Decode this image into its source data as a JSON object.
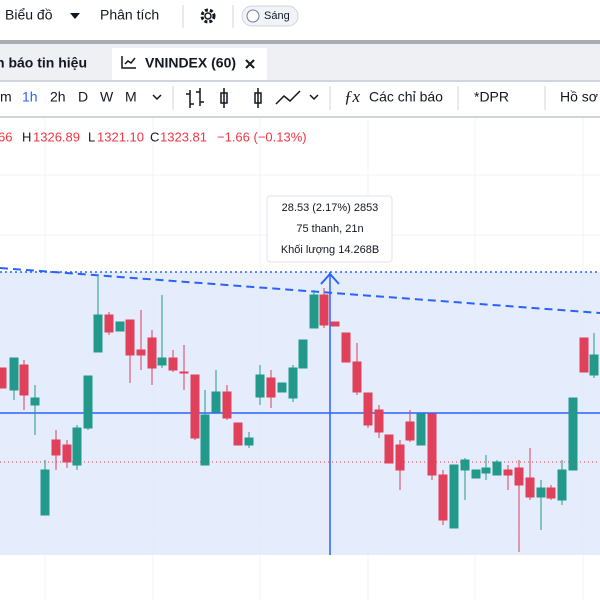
{
  "menu": {
    "chart": "Biểu đồ",
    "analysis": "Phân tích",
    "theme": "Sáng"
  },
  "tabs": [
    "h báo tin hiệu",
    "VNINDEX (60)"
  ],
  "toolbar": {
    "intervals": [
      "m",
      "1h",
      "2h",
      "D",
      "W",
      "M"
    ],
    "indicators": "Các chỉ báo",
    "dpr": "*DPR",
    "profile": "Hồ sơ"
  },
  "ohlc": {
    "open": "66",
    "high_label": "H",
    "high": "1326.89",
    "low_label": "L",
    "low": "1321.10",
    "close_label": "C",
    "close": "1323.81",
    "change": "−1.66 (−0.13%)"
  },
  "tooltip": [
    "28.53 (2.17%) 2853",
    "75 thanh, 21n",
    "Khối lượng 14.268B"
  ]
}
